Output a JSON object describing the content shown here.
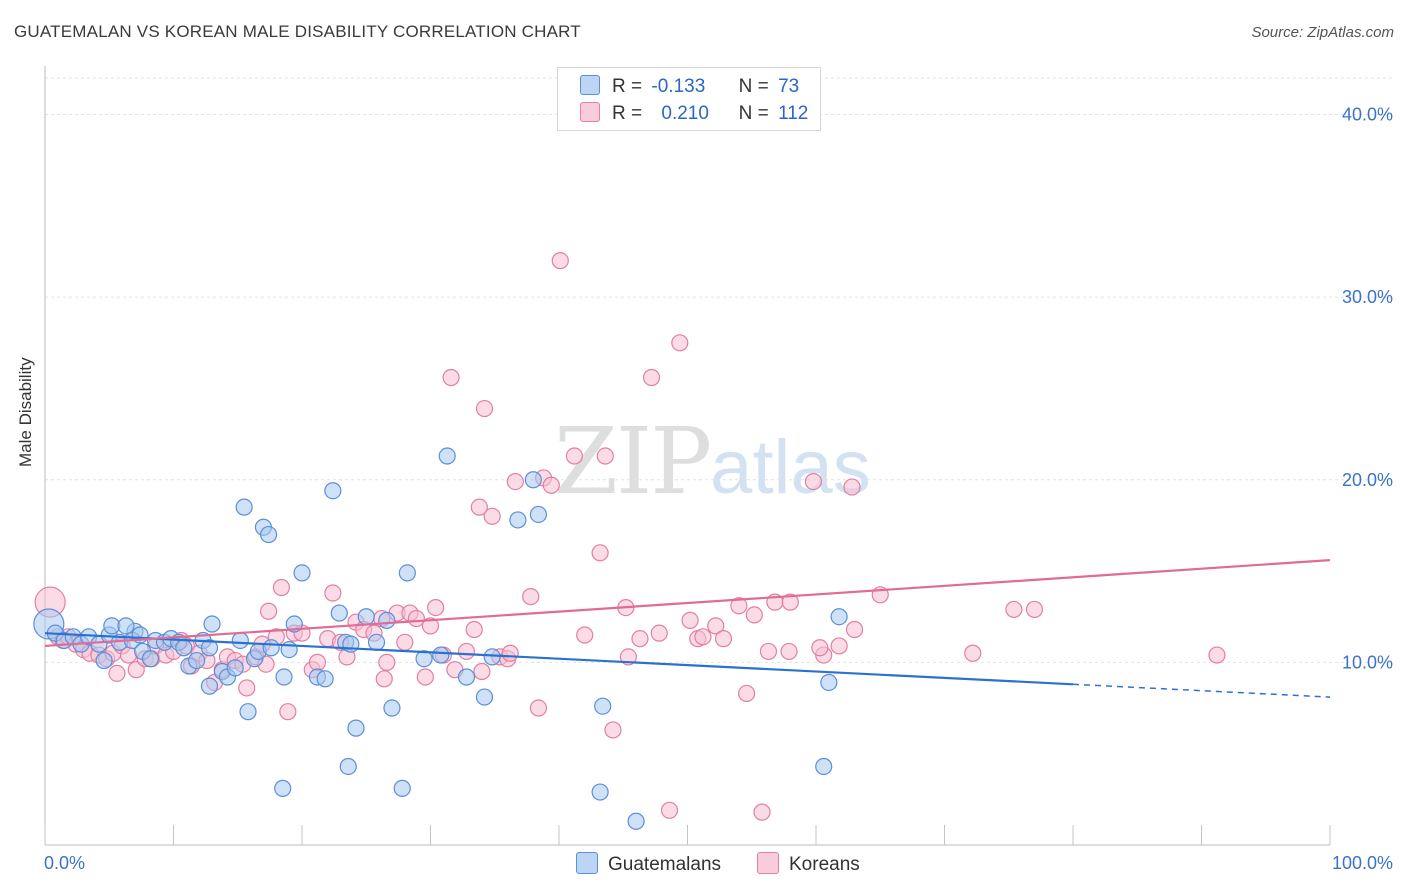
{
  "title": "GUATEMALAN VS KOREAN MALE DISABILITY CORRELATION CHART",
  "source": "Source: ZipAtlas.com",
  "watermark": {
    "zip": "ZIP",
    "atlas": "atlas"
  },
  "legend": {
    "row1": {
      "r_label": "R =",
      "r_value": "-0.133",
      "n_label": "N =",
      "n_value": "73"
    },
    "row2": {
      "r_label": "R =",
      "r_value": "0.210",
      "n_label": "N =",
      "n_value": "112"
    }
  },
  "colors": {
    "blue_fill": "#a8c8f0",
    "blue_stroke": "#5b8fd8",
    "blue_line": "#2b72d0",
    "pink_fill": "#f7bfd2",
    "pink_stroke": "#e27fa2",
    "pink_line": "#e26b96",
    "axis_text": "#3b72c9"
  },
  "chart_data": {
    "type": "scatter",
    "title": "GUATEMALAN VS KOREAN MALE DISABILITY CORRELATION CHART",
    "xlabel": "",
    "ylabel": "Male Disability",
    "xlim": [
      0,
      100
    ],
    "ylim": [
      0,
      42
    ],
    "x_tick_labels": [
      "0.0%",
      "100.0%"
    ],
    "y_ticks": [
      10,
      20,
      30,
      40
    ],
    "y_tick_labels": [
      "10.0%",
      "20.0%",
      "30.0%",
      "40.0%"
    ],
    "grid": true,
    "legend_position": "top-center",
    "series": [
      {
        "name": "Guatemalans",
        "color": "#5b8fd8",
        "trend": {
          "x": [
            0,
            80,
            100
          ],
          "y": [
            11.6,
            8.8,
            8.1
          ],
          "dashed_from": 80
        },
        "points": [
          [
            0.3,
            12.1
          ],
          [
            0.8,
            11.6
          ],
          [
            1.5,
            11.2
          ],
          [
            2.2,
            11.4
          ],
          [
            2.8,
            11.0
          ],
          [
            3.4,
            11.4
          ],
          [
            4.2,
            11.0
          ],
          [
            5.0,
            11.5
          ],
          [
            5.8,
            11.1
          ],
          [
            7.0,
            11.7
          ],
          [
            4.6,
            10.1
          ],
          [
            5.2,
            12.0
          ],
          [
            6.3,
            12.0
          ],
          [
            6.8,
            11.2
          ],
          [
            7.4,
            11.5
          ],
          [
            7.6,
            10.6
          ],
          [
            8.2,
            10.2
          ],
          [
            8.6,
            11.2
          ],
          [
            9.3,
            11.1
          ],
          [
            9.8,
            11.3
          ],
          [
            10.4,
            11.1
          ],
          [
            10.8,
            10.8
          ],
          [
            11.2,
            9.8
          ],
          [
            11.8,
            10.1
          ],
          [
            12.3,
            11.2
          ],
          [
            12.8,
            10.8
          ],
          [
            12.8,
            8.7
          ],
          [
            13.0,
            12.1
          ],
          [
            13.8,
            9.5
          ],
          [
            14.2,
            9.2
          ],
          [
            14.8,
            9.7
          ],
          [
            15.2,
            11.2
          ],
          [
            15.5,
            18.5
          ],
          [
            15.8,
            7.3
          ],
          [
            16.3,
            10.2
          ],
          [
            16.6,
            10.6
          ],
          [
            17.0,
            17.4
          ],
          [
            17.4,
            17.0
          ],
          [
            17.6,
            10.8
          ],
          [
            18.5,
            3.1
          ],
          [
            18.6,
            9.2
          ],
          [
            19.0,
            10.7
          ],
          [
            19.4,
            12.1
          ],
          [
            20.0,
            14.9
          ],
          [
            21.2,
            9.2
          ],
          [
            21.8,
            9.1
          ],
          [
            22.4,
            19.4
          ],
          [
            22.9,
            12.7
          ],
          [
            23.4,
            11.1
          ],
          [
            23.6,
            4.3
          ],
          [
            23.8,
            11.0
          ],
          [
            24.2,
            6.4
          ],
          [
            25.0,
            12.5
          ],
          [
            25.8,
            11.1
          ],
          [
            26.6,
            12.3
          ],
          [
            27.0,
            7.5
          ],
          [
            27.8,
            3.1
          ],
          [
            28.2,
            14.9
          ],
          [
            29.5,
            10.2
          ],
          [
            30.8,
            10.4
          ],
          [
            31.3,
            21.3
          ],
          [
            32.8,
            9.2
          ],
          [
            34.2,
            8.1
          ],
          [
            34.8,
            10.3
          ],
          [
            36.8,
            17.8
          ],
          [
            38.0,
            20.0
          ],
          [
            38.4,
            18.1
          ],
          [
            43.2,
            2.9
          ],
          [
            43.4,
            7.6
          ],
          [
            46.0,
            1.3
          ],
          [
            61.0,
            8.9
          ],
          [
            60.6,
            4.3
          ],
          [
            61.8,
            12.5
          ]
        ]
      },
      {
        "name": "Koreans",
        "color": "#e27fa2",
        "trend": {
          "x": [
            0,
            100
          ],
          "y": [
            10.9,
            15.6
          ]
        },
        "points": [
          [
            0.4,
            13.3
          ],
          [
            1.0,
            11.4
          ],
          [
            1.4,
            11.2
          ],
          [
            1.8,
            11.4
          ],
          [
            2.4,
            11.0
          ],
          [
            3.0,
            10.7
          ],
          [
            3.5,
            10.5
          ],
          [
            4.2,
            10.4
          ],
          [
            4.8,
            10.2
          ],
          [
            5.3,
            10.5
          ],
          [
            6.0,
            10.9
          ],
          [
            6.5,
            10.4
          ],
          [
            7.1,
            9.6
          ],
          [
            7.8,
            10.2
          ],
          [
            8.3,
            10.2
          ],
          [
            8.6,
            10.9
          ],
          [
            9.4,
            10.4
          ],
          [
            10.0,
            10.6
          ],
          [
            10.6,
            11.2
          ],
          [
            11.0,
            10.9
          ],
          [
            11.4,
            9.8
          ],
          [
            12.0,
            10.5
          ],
          [
            12.6,
            10.1
          ],
          [
            13.2,
            8.9
          ],
          [
            13.8,
            9.6
          ],
          [
            14.2,
            10.3
          ],
          [
            14.8,
            10.1
          ],
          [
            15.4,
            9.9
          ],
          [
            15.7,
            8.6
          ],
          [
            16.4,
            10.3
          ],
          [
            16.9,
            11.0
          ],
          [
            17.4,
            12.8
          ],
          [
            18.0,
            11.4
          ],
          [
            18.4,
            14.1
          ],
          [
            18.9,
            7.3
          ],
          [
            19.4,
            11.6
          ],
          [
            20.0,
            11.6
          ],
          [
            20.8,
            9.6
          ],
          [
            21.2,
            10.0
          ],
          [
            22.0,
            11.3
          ],
          [
            22.4,
            13.8
          ],
          [
            23.0,
            11.1
          ],
          [
            23.5,
            10.3
          ],
          [
            24.2,
            12.2
          ],
          [
            24.8,
            11.8
          ],
          [
            25.6,
            11.6
          ],
          [
            26.2,
            12.4
          ],
          [
            26.6,
            10.0
          ],
          [
            27.4,
            12.7
          ],
          [
            28.0,
            11.1
          ],
          [
            28.4,
            12.7
          ],
          [
            28.9,
            12.4
          ],
          [
            29.6,
            9.2
          ],
          [
            30.0,
            12.0
          ],
          [
            30.4,
            13.0
          ],
          [
            31.0,
            10.4
          ],
          [
            31.6,
            25.6
          ],
          [
            31.9,
            9.6
          ],
          [
            32.8,
            10.6
          ],
          [
            33.4,
            11.8
          ],
          [
            33.8,
            18.5
          ],
          [
            34.2,
            23.9
          ],
          [
            34.8,
            18.0
          ],
          [
            35.4,
            10.3
          ],
          [
            36.0,
            10.2
          ],
          [
            36.6,
            19.9
          ],
          [
            37.8,
            13.6
          ],
          [
            38.4,
            7.5
          ],
          [
            38.8,
            20.1
          ],
          [
            39.4,
            19.7
          ],
          [
            40.1,
            32.0
          ],
          [
            41.2,
            21.3
          ],
          [
            42.0,
            11.5
          ],
          [
            43.2,
            16.0
          ],
          [
            43.6,
            21.3
          ],
          [
            44.2,
            6.3
          ],
          [
            45.2,
            13.0
          ],
          [
            46.3,
            11.3
          ],
          [
            47.2,
            25.6
          ],
          [
            47.8,
            11.6
          ],
          [
            48.6,
            1.9
          ],
          [
            49.4,
            27.5
          ],
          [
            50.2,
            12.3
          ],
          [
            50.8,
            11.3
          ],
          [
            51.2,
            11.4
          ],
          [
            52.2,
            12.0
          ],
          [
            52.8,
            11.3
          ],
          [
            54.0,
            13.1
          ],
          [
            54.6,
            8.3
          ],
          [
            55.2,
            12.6
          ],
          [
            55.8,
            1.8
          ],
          [
            56.3,
            10.6
          ],
          [
            56.8,
            13.3
          ],
          [
            58.0,
            13.3
          ],
          [
            59.8,
            19.9
          ],
          [
            60.6,
            10.4
          ],
          [
            60.3,
            10.8
          ],
          [
            61.8,
            10.9
          ],
          [
            63.0,
            11.8
          ],
          [
            62.8,
            19.6
          ],
          [
            65.0,
            13.7
          ],
          [
            72.2,
            10.5
          ],
          [
            75.4,
            12.9
          ],
          [
            77.0,
            12.9
          ],
          [
            91.2,
            10.4
          ],
          [
            26.4,
            9.1
          ],
          [
            34.0,
            9.5
          ],
          [
            45.4,
            10.3
          ],
          [
            57.9,
            10.6
          ],
          [
            36.2,
            10.5
          ],
          [
            5.6,
            9.4
          ],
          [
            17.2,
            9.9
          ]
        ]
      }
    ]
  },
  "bottom_legend": [
    "Guatemalans",
    "Koreans"
  ]
}
